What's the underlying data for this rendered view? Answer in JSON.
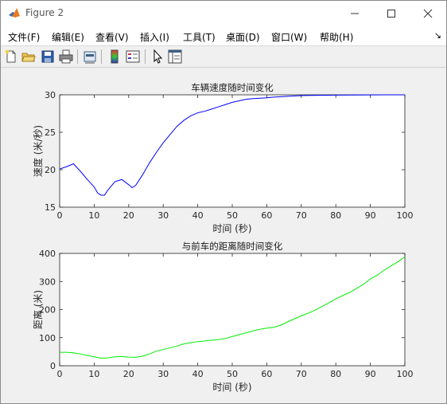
{
  "window": {
    "title": "Figure 2"
  },
  "menu": [
    "文件(F)",
    "编辑(E)",
    "查看(V)",
    "插入(I)",
    "工具(T)",
    "桌面(D)",
    "窗口(W)",
    "帮助(H)"
  ],
  "toolbar_icons": [
    "new-figure-icon",
    "open-folder-icon",
    "save-icon",
    "print-icon",
    "link-axes-icon",
    "colorbar-icon",
    "legend-icon",
    "pointer-icon",
    "property-inspector-icon"
  ],
  "chart_data": [
    {
      "type": "line",
      "title": "车辆速度随时间变化",
      "xlabel": "时间 (秒)",
      "ylabel": "速度 (米/秒)",
      "xlim": [
        0,
        100
      ],
      "ylim": [
        15,
        30
      ],
      "xticks": [
        0,
        10,
        20,
        30,
        40,
        50,
        60,
        70,
        80,
        90,
        100
      ],
      "yticks": [
        15,
        20,
        25,
        30
      ],
      "color": "#0000ff",
      "x": [
        0,
        2,
        4,
        6,
        8,
        10,
        11,
        12,
        13,
        14,
        16,
        18,
        20,
        21,
        22,
        24,
        26,
        28,
        30,
        32,
        34,
        36,
        38,
        40,
        42,
        44,
        46,
        48,
        50,
        52,
        54,
        56,
        58,
        60,
        62,
        64,
        66,
        68,
        70,
        75,
        80,
        85,
        90,
        95,
        100
      ],
      "y": [
        20.1,
        20.4,
        20.8,
        19.8,
        18.7,
        17.7,
        16.9,
        16.6,
        16.6,
        17.3,
        18.4,
        18.7,
        18.0,
        17.6,
        17.9,
        19.3,
        20.9,
        22.3,
        23.6,
        24.7,
        25.8,
        26.6,
        27.2,
        27.6,
        27.8,
        28.1,
        28.4,
        28.7,
        29.0,
        29.2,
        29.4,
        29.5,
        29.55,
        29.6,
        29.7,
        29.75,
        29.8,
        29.85,
        29.9,
        29.93,
        29.96,
        29.98,
        29.99,
        30.0,
        30.0
      ]
    },
    {
      "type": "line",
      "title": "与前车的距离随时间变化",
      "xlabel": "时间 (秒)",
      "ylabel": "距离 (米)",
      "xlim": [
        0,
        100
      ],
      "ylim": [
        0,
        400
      ],
      "xticks": [
        0,
        10,
        20,
        30,
        40,
        50,
        60,
        70,
        80,
        90,
        100
      ],
      "yticks": [
        0,
        100,
        200,
        300,
        400
      ],
      "color": "#00ee00",
      "x": [
        0,
        2,
        4,
        6,
        8,
        10,
        12,
        14,
        16,
        18,
        20,
        22,
        24,
        26,
        28,
        30,
        32,
        34,
        36,
        38,
        40,
        42,
        44,
        46,
        48,
        50,
        52,
        54,
        56,
        58,
        60,
        62,
        64,
        66,
        68,
        70,
        72,
        74,
        76,
        78,
        80,
        82,
        84,
        86,
        88,
        90,
        92,
        94,
        96,
        98,
        100
      ],
      "y": [
        48,
        48,
        46,
        42,
        37,
        32,
        27,
        28,
        32,
        33,
        31,
        30,
        34,
        42,
        52,
        58,
        64,
        70,
        78,
        82,
        86,
        88,
        91,
        93,
        97,
        104,
        111,
        117,
        124,
        130,
        134,
        137,
        144,
        156,
        167,
        178,
        187,
        198,
        211,
        224,
        238,
        250,
        261,
        275,
        290,
        309,
        322,
        340,
        356,
        370,
        388
      ]
    }
  ]
}
